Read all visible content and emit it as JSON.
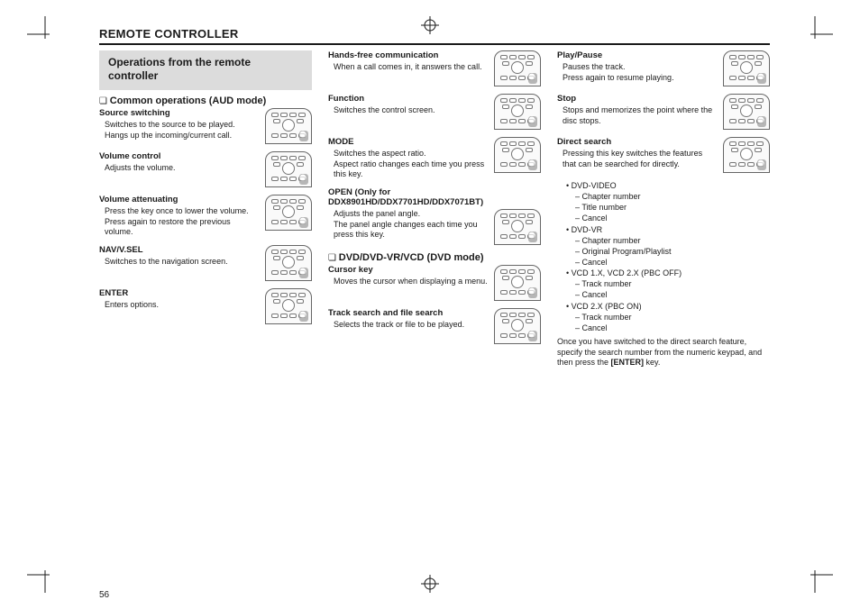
{
  "page_number": "56",
  "header": "REMOTE CONTROLLER",
  "section_box": "Operations from the remote controller",
  "col1": {
    "subhead": "Common operations (AUD mode)",
    "items": [
      {
        "title": "Source switching",
        "body": "Switches to the source to be played.\nHangs up the incoming/current call."
      },
      {
        "title": "Volume control",
        "body": "Adjusts the volume."
      },
      {
        "title": "Volume attenuating",
        "body": "Press the key once to lower the volume. Press again to restore the previous volume."
      },
      {
        "title": "NAV/V.SEL",
        "body": "Switches to the navigation screen."
      },
      {
        "title": "ENTER",
        "body": "Enters options."
      }
    ]
  },
  "col2": {
    "items_top": [
      {
        "title": "Hands-free communication",
        "body": "When a call comes in, it answers the call."
      },
      {
        "title": "Function",
        "body": "Switches the control screen."
      },
      {
        "title": "MODE",
        "body": "Switches the aspect ratio.\nAspect ratio changes each time you press this key."
      },
      {
        "title": "OPEN (Only for DDX8901HD/DDX7701HD/DDX7071BT)",
        "body": "Adjusts the panel angle.\nThe panel angle changes each time you press this key.",
        "noimg_title": true
      }
    ],
    "subhead": "DVD/DVD-VR/VCD (DVD mode)",
    "items_bottom": [
      {
        "title": "Cursor key",
        "body": "Moves the cursor when displaying a menu."
      },
      {
        "title": "Track search and file search",
        "body": "Selects the track or file to be played."
      }
    ]
  },
  "col3": {
    "items": [
      {
        "title": "Play/Pause",
        "body": "Pauses the track.\nPress again to resume playing."
      },
      {
        "title": "Stop",
        "body": "Stops and memorizes the point where the disc stops."
      },
      {
        "title": "Direct search",
        "body": "Pressing this key switches the features that can be searched for directly."
      }
    ],
    "list": [
      {
        "type": "bullet",
        "text": "DVD-VIDEO"
      },
      {
        "type": "dash",
        "text": "Chapter number"
      },
      {
        "type": "dash",
        "text": "Title number"
      },
      {
        "type": "dash",
        "text": "Cancel"
      },
      {
        "type": "bullet",
        "text": "DVD-VR"
      },
      {
        "type": "dash",
        "text": "Chapter number"
      },
      {
        "type": "dash",
        "text": "Original Program/Playlist"
      },
      {
        "type": "dash",
        "text": "Cancel"
      },
      {
        "type": "bullet",
        "text": "VCD 1.X, VCD 2.X (PBC OFF)"
      },
      {
        "type": "dash",
        "text": "Track number"
      },
      {
        "type": "dash",
        "text": "Cancel"
      },
      {
        "type": "bullet",
        "text": "VCD 2.X (PBC ON)"
      },
      {
        "type": "dash",
        "text": "Track number"
      },
      {
        "type": "dash",
        "text": "Cancel"
      }
    ],
    "footnote_parts": {
      "pre": "Once you have switched to the direct search feature, specify the search number from the numeric keypad, and then press the ",
      "bold": "[ENTER]",
      "post": " key."
    }
  }
}
